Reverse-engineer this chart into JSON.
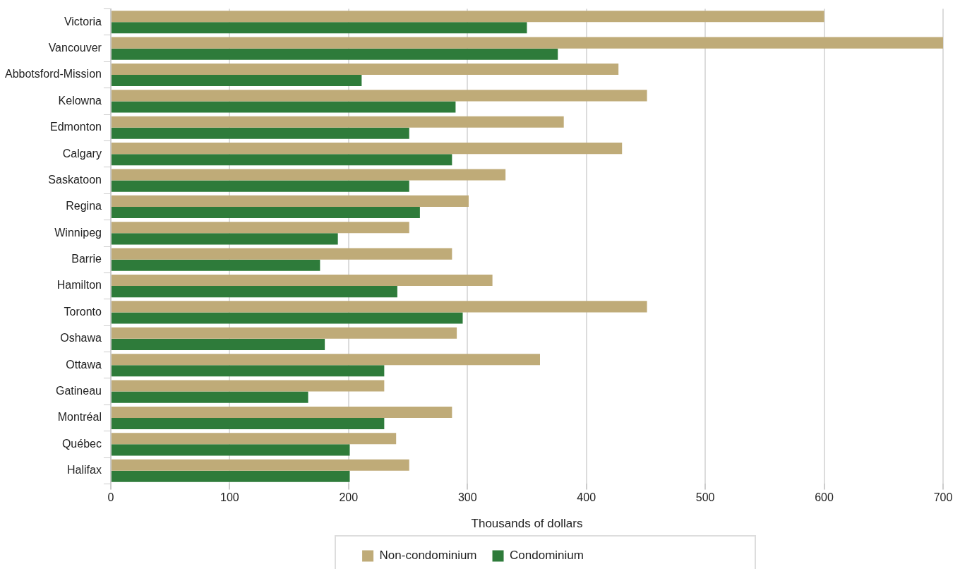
{
  "chart_data": {
    "type": "bar",
    "orientation": "horizontal",
    "xlabel": "Thousands of dollars",
    "categories": [
      "Victoria",
      "Vancouver",
      "Abbotsford-Mission",
      "Kelowna",
      "Edmonton",
      "Calgary",
      "Saskatoon",
      "Regina",
      "Winnipeg",
      "Barrie",
      "Hamilton",
      "Toronto",
      "Oshawa",
      "Ottawa",
      "Gatineau",
      "Montréal",
      "Québec",
      "Halifax"
    ],
    "series": [
      {
        "name": "Non-condominium",
        "color": "#bfab78",
        "values": [
          600,
          700,
          427,
          451,
          381,
          430,
          332,
          301,
          251,
          287,
          321,
          451,
          291,
          361,
          230,
          287,
          240,
          251
        ]
      },
      {
        "name": "Condominium",
        "color": "#2e7b3a",
        "values": [
          350,
          376,
          211,
          290,
          251,
          287,
          251,
          260,
          191,
          176,
          241,
          296,
          180,
          230,
          166,
          230,
          201,
          201
        ]
      }
    ],
    "xlim": [
      0,
      700
    ],
    "xticks": [
      0,
      100,
      200,
      300,
      400,
      500,
      600,
      700
    ],
    "grid": "x",
    "legend": "bottom"
  }
}
